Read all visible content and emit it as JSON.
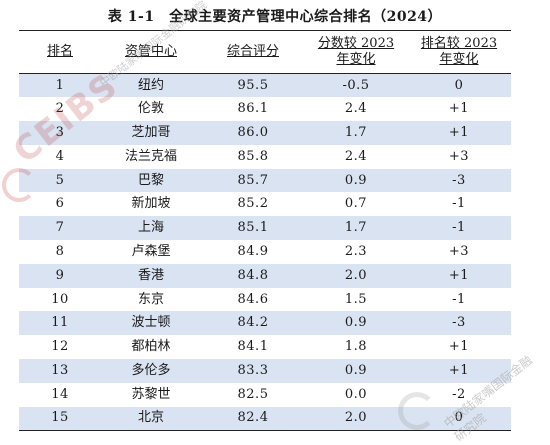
{
  "caption": "表 1-1　全球主要资产管理中心综合排名（2024）",
  "columns": {
    "rank": "排名",
    "center": "资管中心",
    "score": "综合评分",
    "score_change_line1": "分数较 2023",
    "score_change_line2": "年变化",
    "rank_change_line1": "排名较 2023",
    "rank_change_line2": "年变化"
  },
  "rows": [
    {
      "rank": "1",
      "center": "纽约",
      "score": "95.5",
      "score_change": "-0.5",
      "rank_change": "0"
    },
    {
      "rank": "2",
      "center": "伦敦",
      "score": "86.1",
      "score_change": "2.4",
      "rank_change": "+1"
    },
    {
      "rank": "3",
      "center": "芝加哥",
      "score": "86.0",
      "score_change": "1.7",
      "rank_change": "+1"
    },
    {
      "rank": "4",
      "center": "法兰克福",
      "score": "85.8",
      "score_change": "2.4",
      "rank_change": "+3"
    },
    {
      "rank": "5",
      "center": "巴黎",
      "score": "85.7",
      "score_change": "0.9",
      "rank_change": "-3"
    },
    {
      "rank": "6",
      "center": "新加坡",
      "score": "85.2",
      "score_change": "0.7",
      "rank_change": "-1"
    },
    {
      "rank": "7",
      "center": "上海",
      "score": "85.1",
      "score_change": "1.7",
      "rank_change": "-1"
    },
    {
      "rank": "8",
      "center": "卢森堡",
      "score": "84.9",
      "score_change": "2.3",
      "rank_change": "+3"
    },
    {
      "rank": "9",
      "center": "香港",
      "score": "84.8",
      "score_change": "2.0",
      "rank_change": "+1"
    },
    {
      "rank": "10",
      "center": "东京",
      "score": "84.6",
      "score_change": "1.5",
      "rank_change": "-1"
    },
    {
      "rank": "11",
      "center": "波士顿",
      "score": "84.2",
      "score_change": "0.9",
      "rank_change": "-3"
    },
    {
      "rank": "12",
      "center": "都柏林",
      "score": "84.1",
      "score_change": "1.8",
      "rank_change": "+1"
    },
    {
      "rank": "13",
      "center": "多伦多",
      "score": "83.3",
      "score_change": "0.9",
      "rank_change": "+1"
    },
    {
      "rank": "14",
      "center": "苏黎世",
      "score": "82.5",
      "score_change": "0.0",
      "rank_change": "-2"
    },
    {
      "rank": "15",
      "center": "北京",
      "score": "82.4",
      "score_change": "2.0",
      "rank_change": "0"
    }
  ],
  "watermark": {
    "logo": "CEIBS",
    "text_1": "中欧陆家嘴国际金融研究院",
    "text_2": "中欧陆家嘴国际金融研究院"
  }
}
